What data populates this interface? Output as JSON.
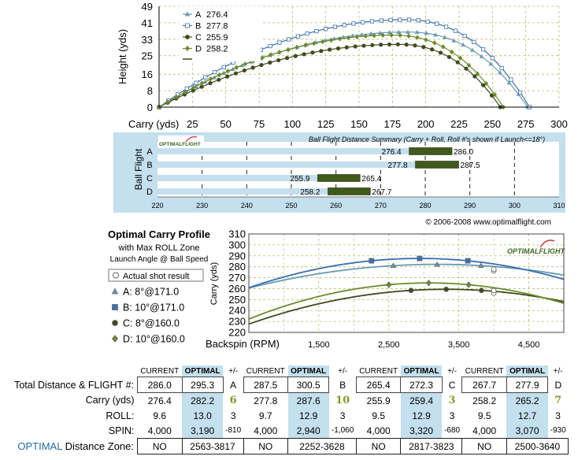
{
  "colors": {
    "A": "#6a9ab0",
    "B": "#3b6fb0",
    "C": "#3f4a1e",
    "D": "#6f8a2e",
    "optimal_fill": "#c4dfee",
    "green_text": "#7f9a2a"
  },
  "chart_data": [
    {
      "type": "line",
      "ylabel": "Height (yds)",
      "xlabel_prefix": "Carry (yds)",
      "x_ticks": [
        25,
        50,
        75,
        100,
        125,
        150,
        175,
        200,
        225,
        250,
        275,
        300
      ],
      "y_ticks": [
        0,
        8,
        16,
        25,
        33,
        41,
        49
      ],
      "xlim": [
        0,
        300
      ],
      "ylim": [
        0,
        49
      ],
      "legend_position": "top-left",
      "series": [
        {
          "key": "A",
          "name": "A",
          "value_label": "276.4",
          "carry": 276.4,
          "apex": 36.5,
          "apex_x": 187,
          "marker": "triangle"
        },
        {
          "key": "B",
          "name": "B",
          "value_label": "277.8",
          "carry": 277.8,
          "apex": 42.5,
          "apex_x": 185,
          "marker": "square"
        },
        {
          "key": "C",
          "name": "C",
          "value_label": "255.9",
          "carry": 255.9,
          "apex": 30.5,
          "apex_x": 180,
          "marker": "circle"
        },
        {
          "key": "D",
          "name": "D",
          "value_label": "258.2",
          "carry": 258.2,
          "apex": 35.0,
          "apex_x": 176,
          "marker": "diamond"
        }
      ]
    },
    {
      "type": "bar",
      "title": "Ball Flight Distance Summary (Carry + Roll, Roll #'s shown if Launch<=18°)",
      "ylabel": "Ball Flight",
      "x_ticks": [
        220,
        230,
        240,
        250,
        260,
        270,
        280,
        290,
        300,
        310
      ],
      "xlim": [
        220,
        310
      ],
      "bars": [
        {
          "category": "A",
          "carry": 276.4,
          "total": 286.0,
          "carry_label": "276.4",
          "total_label": "286.0"
        },
        {
          "category": "B",
          "carry": 277.8,
          "total": 287.5,
          "carry_label": "277.8",
          "total_label": "287.5"
        },
        {
          "category": "C",
          "carry": 255.9,
          "total": 265.4,
          "carry_label": "255.9",
          "total_label": "265.4"
        },
        {
          "category": "D",
          "carry": 258.2,
          "total": 267.7,
          "carry_label": "258.2",
          "total_label": "267.7"
        }
      ],
      "logo": "OPTIMALFLIGHT",
      "copyright": "© 2006-2008 www.optimalflight.com"
    },
    {
      "type": "line",
      "title": "Optimal Carry Profile",
      "subtitle": "with Max ROLL Zone",
      "subtitle2": "Launch Angle @ Ball Speed",
      "ylabel": "Carry (yds)",
      "xlabel": "Backspin (RPM)",
      "x_ticks": [
        "1,500",
        "2,500",
        "3,500",
        "4,500"
      ],
      "x_tick_values": [
        1500,
        2500,
        3500,
        4500
      ],
      "y_ticks": [
        220,
        230,
        240,
        250,
        260,
        270,
        280,
        290,
        300,
        310
      ],
      "xlim": [
        500,
        5000
      ],
      "ylim": [
        220,
        310
      ],
      "logo": "OPTIMALFLIGHT",
      "legend": {
        "actual": "Actual shot result"
      },
      "series": [
        {
          "key": "A",
          "name": "A: 8°@171.0",
          "peak_x": 3190,
          "peak_y": 282.2,
          "k": 3e-06,
          "actual_x": 4000,
          "actual_y": 276.4,
          "zone": [
            2563,
            3817
          ],
          "marker": "triangle"
        },
        {
          "key": "B",
          "name": "B: 10°@171.0",
          "peak_x": 2940,
          "peak_y": 287.6,
          "k": 4.5e-06,
          "actual_x": 4000,
          "actual_y": 277.8,
          "zone": [
            2252,
            3628
          ],
          "marker": "square"
        },
        {
          "key": "C",
          "name": "C: 8°@160.0",
          "peak_x": 3320,
          "peak_y": 259.4,
          "k": 4e-06,
          "actual_x": 4000,
          "actual_y": 255.9,
          "zone": [
            2817,
            3823
          ],
          "marker": "circle"
        },
        {
          "key": "D",
          "name": "D: 10°@160.0",
          "peak_x": 3070,
          "peak_y": 265.2,
          "k": 5e-06,
          "actual_x": 4000,
          "actual_y": 258.2,
          "zone": [
            2500,
            3640
          ],
          "marker": "diamond"
        }
      ]
    }
  ],
  "table": {
    "header": [
      "CURRENT",
      "OPTIMAL",
      "+/-"
    ],
    "clubs": [
      "A",
      "B",
      "C",
      "D"
    ],
    "rows": [
      {
        "label": "Total Distance & FLIGHT #:",
        "cells": [
          [
            "286.0",
            "295.3",
            "A"
          ],
          [
            "287.5",
            "300.5",
            "B"
          ],
          [
            "265.4",
            "272.3",
            "C"
          ],
          [
            "267.7",
            "277.9",
            "D"
          ]
        ]
      },
      {
        "label": "Carry (yds)",
        "cells": [
          [
            "276.4",
            "282.2",
            "6"
          ],
          [
            "277.8",
            "287.6",
            "10"
          ],
          [
            "255.9",
            "259.4",
            "3"
          ],
          [
            "258.2",
            "265.2",
            "7"
          ]
        ]
      },
      {
        "label": "ROLL:",
        "cells": [
          [
            "9.6",
            "13.0",
            "3"
          ],
          [
            "9.7",
            "12.9",
            "3"
          ],
          [
            "9.5",
            "12.9",
            "3"
          ],
          [
            "9.5",
            "12.7",
            "3"
          ]
        ]
      },
      {
        "label": "SPIN:",
        "cells": [
          [
            "4,000",
            "3,190",
            "-810"
          ],
          [
            "4,000",
            "2,940",
            "-1,060"
          ],
          [
            "4,000",
            "3,320",
            "-680"
          ],
          [
            "4,000",
            "3,070",
            "-930"
          ]
        ]
      }
    ],
    "zone_row": {
      "label_prefix": "OPTIMAL",
      "label_rest": " Distance Zone:",
      "cells": [
        [
          "NO",
          "2563-3817"
        ],
        [
          "NO",
          "2252-3628"
        ],
        [
          "NO",
          "2817-3823"
        ],
        [
          "NO",
          "2500-3640"
        ]
      ]
    }
  }
}
